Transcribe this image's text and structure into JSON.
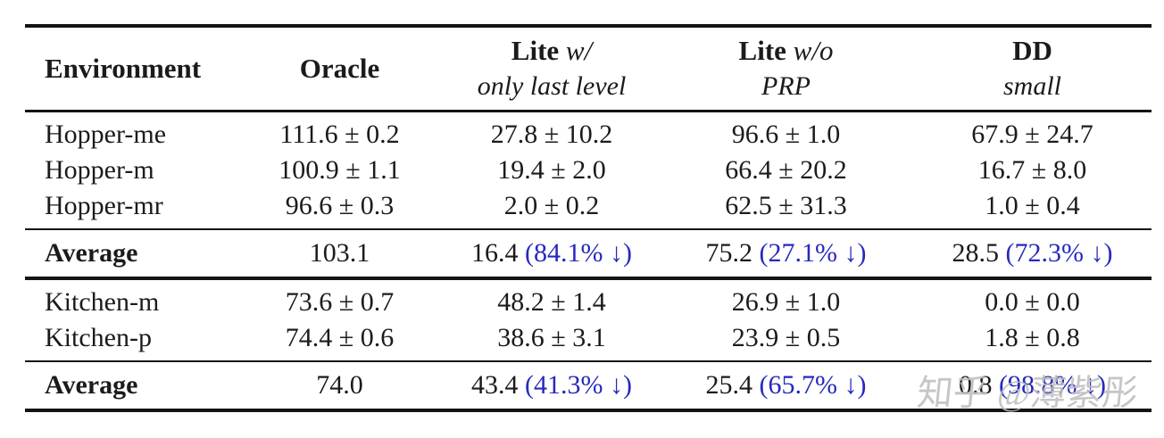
{
  "colors": {
    "accent_blue": "#2629bd",
    "text": "#1b1b1b",
    "rule": "#141414",
    "watermark_gray": "#bdbdbd"
  },
  "table": {
    "header": {
      "environment": "Environment",
      "oracle": "Oracle",
      "lite_w": {
        "bold": "Lite",
        "italic": "w/",
        "sub": "only last level"
      },
      "lite_wo": {
        "bold": "Lite",
        "italic": "w/o",
        "sub": "PRP"
      },
      "dd": {
        "bold": "DD",
        "italic": "",
        "sub": "small"
      }
    },
    "hopper_rows": [
      {
        "env": "Hopper-me",
        "oracle": "111.6 ± 0.2",
        "lite_w": "27.8 ± 10.2",
        "lite_wo": "96.6 ± 1.0",
        "dd": "67.9 ± 24.7"
      },
      {
        "env": "Hopper-m",
        "oracle": "100.9 ± 1.1",
        "lite_w": "19.4 ± 2.0",
        "lite_wo": "66.4 ± 20.2",
        "dd": "16.7 ± 8.0"
      },
      {
        "env": "Hopper-mr",
        "oracle": "96.6 ± 0.3",
        "lite_w": "2.0 ± 0.2",
        "lite_wo": "62.5 ± 31.3",
        "dd": "1.0 ± 0.4"
      }
    ],
    "hopper_average": {
      "label": "Average",
      "oracle": "103.1",
      "lite_w": {
        "v": "16.4",
        "p": "(84.1% ↓)"
      },
      "lite_wo": {
        "v": "75.2",
        "p": "(27.1% ↓)"
      },
      "dd": {
        "v": "28.5",
        "p": "(72.3% ↓)"
      }
    },
    "kitchen_rows": [
      {
        "env": "Kitchen-m",
        "oracle": "73.6 ± 0.7",
        "lite_w": "48.2 ± 1.4",
        "lite_wo": "26.9 ± 1.0",
        "dd": "0.0 ± 0.0"
      },
      {
        "env": "Kitchen-p",
        "oracle": "74.4 ± 0.6",
        "lite_w": "38.6 ± 3.1",
        "lite_wo": "23.9 ± 0.5",
        "dd": "1.8 ± 0.8"
      }
    ],
    "kitchen_average": {
      "label": "Average",
      "oracle": "74.0",
      "lite_w": {
        "v": "43.4",
        "p": "(41.3% ↓)"
      },
      "lite_wo": {
        "v": "25.4",
        "p": "(65.7% ↓)"
      },
      "dd": {
        "v": "0.8",
        "p": "(98.8% ↓)"
      }
    }
  },
  "watermark": "知乎 @薄紫彤",
  "chart_data": {
    "type": "table",
    "columns": [
      "Environment",
      "Oracle",
      "Lite w/ only last level",
      "Lite w/o PRP",
      "DD small"
    ],
    "rows": [
      [
        "Hopper-me",
        "111.6 ± 0.2",
        "27.8 ± 10.2",
        "96.6 ± 1.0",
        "67.9 ± 24.7"
      ],
      [
        "Hopper-m",
        "100.9 ± 1.1",
        "19.4 ± 2.0",
        "66.4 ± 20.2",
        "16.7 ± 8.0"
      ],
      [
        "Hopper-mr",
        "96.6 ± 0.3",
        "2.0 ± 0.2",
        "62.5 ± 31.3",
        "1.0 ± 0.4"
      ],
      [
        "Average",
        "103.1",
        "16.4 (84.1% ↓)",
        "75.2 (27.1% ↓)",
        "28.5 (72.3% ↓)"
      ],
      [
        "Kitchen-m",
        "73.6 ± 0.7",
        "48.2 ± 1.4",
        "26.9 ± 1.0",
        "0.0 ± 0.0"
      ],
      [
        "Kitchen-p",
        "74.4 ± 0.6",
        "38.6 ± 3.1",
        "23.9 ± 0.5",
        "1.8 ± 0.8"
      ],
      [
        "Average",
        "74.0",
        "43.4 (41.3% ↓)",
        "25.4 (65.7% ↓)",
        "0.8 (98.8% ↓)"
      ]
    ]
  }
}
